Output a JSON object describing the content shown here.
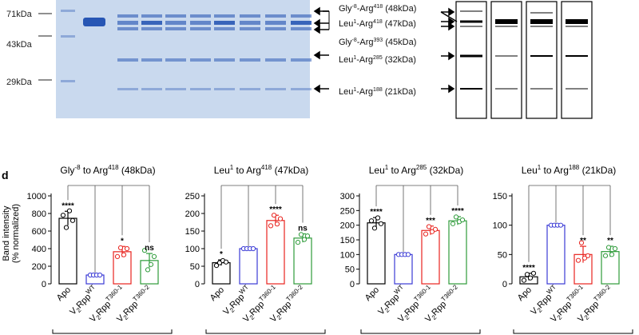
{
  "gel": {
    "markers": [
      "71kDa",
      "43kDa",
      "29kDa"
    ],
    "band_labels": [
      {
        "pre": "Gly",
        "pre_sup": "-8",
        "mid": "-Arg",
        "sup": "418",
        "post": " (48kDa)"
      },
      {
        "pre": "Leu",
        "pre_sup": "1",
        "mid": "-Arg",
        "sup": "418",
        "post": " (47kDa)"
      },
      {
        "pre": "Gly",
        "pre_sup": "-8",
        "mid": "-Arg",
        "sup": "393",
        "post": " (45kDa)"
      },
      {
        "pre": "Leu",
        "pre_sup": "1",
        "mid": "-Arg",
        "sup": "285",
        "post": " (32kDa)"
      },
      {
        "pre": "Leu",
        "pre_sup": "1",
        "mid": "-Arg",
        "sup": "188",
        "post": " (21kDa)"
      }
    ]
  },
  "panel_letter": "d",
  "y_axis_label_line1": "Band intensity",
  "y_axis_label_line2": "(% normalized)",
  "group_labels": [
    {
      "text": "Apo",
      "sub": "",
      "sup": ""
    },
    {
      "text": "V",
      "sub": "2",
      "mid": "Rpp",
      "sup": "WT"
    },
    {
      "text": "V",
      "sub": "2",
      "mid": "Rpp",
      "sup": "T360-1"
    },
    {
      "text": "V",
      "sub": "2",
      "mid": "Rpp",
      "sup": "T360-2"
    }
  ],
  "colors": {
    "apo": "#000000",
    "wt": "#3b3bd6",
    "t1": "#e8231e",
    "t2": "#2e9b3a",
    "gel_bg": "#c9d9ee",
    "band": "#1f4fb0"
  },
  "chart_data": [
    {
      "type": "bar",
      "title_parts": {
        "a": "Gly",
        "a_sup": "-8",
        "b": " to Arg",
        "b_sup": "418",
        "c": " (48kDa)"
      },
      "categories": [
        "Apo",
        "V2Rpp WT",
        "V2Rpp T360-1",
        "V2Rpp T360-2"
      ],
      "values": [
        745,
        100,
        365,
        265
      ],
      "errors": [
        80,
        0,
        60,
        80
      ],
      "points": [
        [
          780,
          640,
          830,
          720
        ],
        [
          100,
          100,
          100,
          100
        ],
        [
          310,
          410,
          330,
          400
        ],
        [
          380,
          160,
          220,
          310
        ]
      ],
      "ylim": [
        0,
        1000
      ],
      "yticks": [
        0,
        200,
        400,
        600,
        800,
        1000
      ],
      "significance": [
        "****",
        "",
        "*",
        "ns"
      ]
    },
    {
      "type": "bar",
      "title_parts": {
        "a": "Leu",
        "a_sup": "1",
        "b": " to Arg",
        "b_sup": "418",
        "c": " (47kDa)"
      },
      "categories": [
        "Apo",
        "V2Rpp WT",
        "V2Rpp T360-1",
        "V2Rpp T360-2"
      ],
      "values": [
        60,
        100,
        180,
        130
      ],
      "errors": [
        8,
        0,
        15,
        12
      ],
      "points": [
        [
          52,
          60,
          66,
          62
        ],
        [
          100,
          100,
          100,
          100
        ],
        [
          165,
          195,
          170,
          185
        ],
        [
          118,
          140,
          126,
          136
        ]
      ],
      "ylim": [
        0,
        250
      ],
      "yticks": [
        0,
        50,
        100,
        150,
        200,
        250
      ],
      "significance": [
        "*",
        "",
        "****",
        "ns"
      ]
    },
    {
      "type": "bar",
      "title_parts": {
        "a": "Leu",
        "a_sup": "1",
        "b": " to Arg",
        "b_sup": "285",
        "c": " (32kDa)"
      },
      "categories": [
        "Apo",
        "V2Rpp WT",
        "V2Rpp T360-1",
        "V2Rpp T360-2"
      ],
      "values": [
        208,
        100,
        182,
        215
      ],
      "errors": [
        18,
        0,
        15,
        14
      ],
      "points": [
        [
          215,
          190,
          225,
          205
        ],
        [
          100,
          100,
          100,
          100
        ],
        [
          170,
          195,
          178,
          186
        ],
        [
          205,
          228,
          212,
          218
        ]
      ],
      "ylim": [
        0,
        300
      ],
      "yticks": [
        0,
        50,
        100,
        150,
        200,
        250,
        300
      ],
      "significance": [
        "****",
        "",
        "***",
        "****"
      ]
    },
    {
      "type": "bar",
      "title_parts": {
        "a": "Leu",
        "a_sup": "1",
        "b": " to Arg",
        "b_sup": "188",
        "c": " (21kDa)"
      },
      "categories": [
        "Apo",
        "V2Rpp WT",
        "V2Rpp T360-1",
        "V2Rpp T360-2"
      ],
      "values": [
        12,
        100,
        50,
        55
      ],
      "errors": [
        6,
        0,
        14,
        9
      ],
      "points": [
        [
          6,
          16,
          10,
          18
        ],
        [
          100,
          100,
          100,
          100
        ],
        [
          40,
          70,
          44,
          48
        ],
        [
          48,
          62,
          50,
          60
        ]
      ],
      "ylim": [
        0,
        150
      ],
      "yticks": [
        0,
        50,
        100,
        150
      ],
      "significance": [
        "****",
        "",
        "**",
        "**"
      ]
    }
  ]
}
